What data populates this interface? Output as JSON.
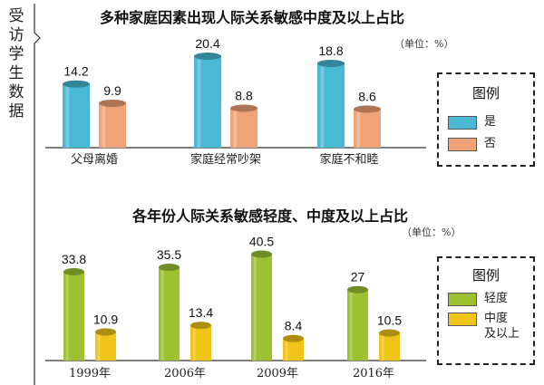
{
  "side_label": "受访学生数据",
  "colors": {
    "blue": "#4ab9d4",
    "orange": "#f0a377",
    "green": "#9cc232",
    "yellow": "#f0c419"
  },
  "chart_data": [
    {
      "type": "bar",
      "title": "多种家庭因素出现人际关系敏感中度及以上占比",
      "unit": "（单位：%）",
      "categories": [
        "父母离婚",
        "家庭经常吵架",
        "家庭不和睦"
      ],
      "series": [
        {
          "name": "是",
          "values": [
            14.2,
            20.4,
            18.8
          ],
          "color": "blue"
        },
        {
          "name": "否",
          "values": [
            9.9,
            8.8,
            8.6
          ],
          "color": "orange"
        }
      ],
      "legend": {
        "title": "图例",
        "position": "right"
      }
    },
    {
      "type": "bar",
      "title": "各年份人际关系敏感轻度、中度及以上占比",
      "unit": "（单位：%）",
      "categories": [
        "1999年",
        "2006年",
        "2009年",
        "2016年"
      ],
      "series": [
        {
          "name": "轻度",
          "values": [
            33.8,
            35.5,
            40.5,
            27
          ],
          "color": "green"
        },
        {
          "name": "中度\n及以上",
          "values": [
            10.9,
            13.4,
            8.4,
            10.5
          ],
          "color": "yellow"
        }
      ],
      "legend": {
        "title": "图例",
        "position": "right"
      }
    }
  ]
}
